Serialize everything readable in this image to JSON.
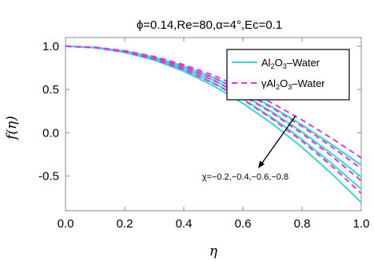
{
  "chart_data": {
    "type": "line",
    "title": "ϕ=0.14,Re=80,α=4°,Ec=0.1",
    "xlabel": "η",
    "ylabel": "f(η)",
    "xlim": [
      0,
      1
    ],
    "ylim": [
      -0.9,
      1.1
    ],
    "x_ticks": [
      "0.0",
      "0.2",
      "0.4",
      "0.6",
      "0.8",
      "1.0"
    ],
    "y_ticks": [
      "1.0",
      "0.5",
      "0.0",
      "-0.5"
    ],
    "grid": false,
    "legend_position": "top-right",
    "legend": [
      "Al2O3–Water",
      "γAl2O3–Water"
    ],
    "colors": {
      "al2o3_water": "#38d6d6",
      "gamma_al2o3_water": "#d63fd6"
    },
    "annotation": "χ=−0.2,−0.4,−0.6,−0.8",
    "x": [
      0.0,
      0.1,
      0.2,
      0.3,
      0.4,
      0.5,
      0.6,
      0.7,
      0.8,
      0.9,
      1.0
    ],
    "series": [
      {
        "name": "Al2O3–Water",
        "chi": -0.2,
        "values": [
          1.0,
          0.986,
          0.944,
          0.872,
          0.77,
          0.638,
          0.48,
          0.296,
          0.09,
          -0.135,
          -0.375
        ]
      },
      {
        "name": "Al2O3–Water",
        "chi": -0.4,
        "values": [
          1.0,
          0.985,
          0.94,
          0.862,
          0.751,
          0.609,
          0.437,
          0.237,
          0.01,
          -0.241,
          -0.51
        ]
      },
      {
        "name": "Al2O3–Water",
        "chi": -0.6,
        "values": [
          1.0,
          0.984,
          0.935,
          0.851,
          0.731,
          0.577,
          0.39,
          0.171,
          -0.077,
          -0.354,
          -0.65
        ]
      },
      {
        "name": "Al2O3–Water",
        "chi": -0.8,
        "values": [
          1.0,
          0.982,
          0.929,
          0.839,
          0.71,
          0.543,
          0.34,
          0.102,
          -0.168,
          -0.473,
          -0.805
        ]
      },
      {
        "name": "γAl2O3–Water",
        "chi": -0.2,
        "values": [
          1.0,
          0.987,
          0.948,
          0.881,
          0.786,
          0.663,
          0.514,
          0.341,
          0.148,
          -0.064,
          -0.29
        ]
      },
      {
        "name": "γAl2O3–Water",
        "chi": -0.4,
        "values": [
          1.0,
          0.986,
          0.943,
          0.871,
          0.768,
          0.635,
          0.473,
          0.284,
          0.072,
          -0.162,
          -0.415
        ]
      },
      {
        "name": "γAl2O3–Water",
        "chi": -0.6,
        "values": [
          1.0,
          0.985,
          0.938,
          0.86,
          0.749,
          0.605,
          0.429,
          0.224,
          -0.01,
          -0.27,
          -0.555
        ]
      },
      {
        "name": "γAl2O3–Water",
        "chi": -0.8,
        "values": [
          1.0,
          0.983,
          0.932,
          0.848,
          0.728,
          0.572,
          0.382,
          0.158,
          -0.097,
          -0.383,
          -0.7
        ]
      }
    ]
  }
}
